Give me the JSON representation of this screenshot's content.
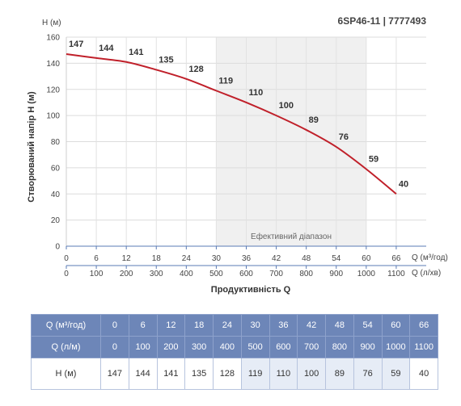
{
  "chart_data": {
    "type": "line",
    "title": "6SP46-11 | 7777493",
    "ylabel": "Створюваний напір H (м)",
    "ylabel_unit": "H (м)",
    "xlabel": "Продуктивність Q",
    "x_unit_primary": "Q (м³/год)",
    "x_unit_secondary": "Q (л/хв)",
    "x_primary": [
      0,
      6,
      12,
      18,
      24,
      30,
      36,
      42,
      48,
      54,
      60,
      66
    ],
    "x_secondary": [
      0,
      100,
      200,
      300,
      400,
      500,
      600,
      700,
      800,
      900,
      1000,
      1100
    ],
    "y_ticks": [
      0,
      20,
      40,
      60,
      80,
      100,
      120,
      140,
      160
    ],
    "xlim": [
      0,
      72
    ],
    "ylim": [
      0,
      160
    ],
    "grid": true,
    "efficient_range": {
      "label": "Ефективний діапазон",
      "x_from": 30,
      "x_to": 60
    },
    "series": [
      {
        "color": "#c0202a",
        "x": [
          0,
          6,
          12,
          18,
          24,
          30,
          36,
          42,
          48,
          54,
          60,
          66
        ],
        "values": [
          147,
          144,
          141,
          135,
          128,
          119,
          110,
          100,
          89,
          76,
          59,
          40
        ]
      }
    ]
  },
  "table": {
    "row_labels": [
      "Q (м³/год)",
      "Q (л/м)",
      "H (м)"
    ],
    "q_m3h": [
      "0",
      "6",
      "12",
      "18",
      "24",
      "30",
      "36",
      "42",
      "48",
      "54",
      "60",
      "66"
    ],
    "q_lmin": [
      "0",
      "100",
      "200",
      "300",
      "400",
      "500",
      "600",
      "700",
      "800",
      "900",
      "1000",
      "1100"
    ],
    "h_m": [
      "147",
      "144",
      "141",
      "135",
      "128",
      "119",
      "110",
      "100",
      "89",
      "76",
      "59",
      "40"
    ],
    "efficient_columns": [
      5,
      6,
      7,
      8,
      9,
      10
    ]
  },
  "colors": {
    "curve": "#c0202a",
    "efficient_band": "#f0f0f0",
    "axis": "#5a7bb5",
    "table_header": "#6d86b8",
    "table_highlight": "#e6ecf6"
  }
}
